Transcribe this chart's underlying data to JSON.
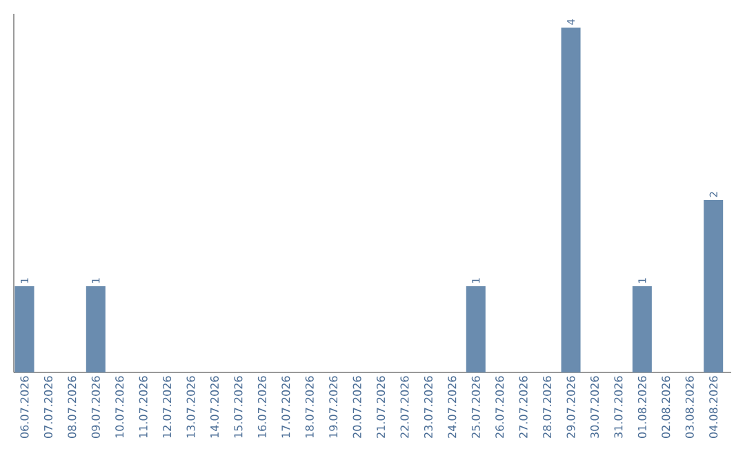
{
  "chart_data": {
    "type": "bar",
    "categories": [
      "06.07.2026",
      "07.07.2026",
      "08.07.2026",
      "09.07.2026",
      "10.07.2026",
      "11.07.2026",
      "12.07.2026",
      "13.07.2026",
      "14.07.2026",
      "15.07.2026",
      "16.07.2026",
      "17.07.2026",
      "18.07.2026",
      "19.07.2026",
      "20.07.2026",
      "21.07.2026",
      "22.07.2026",
      "23.07.2026",
      "24.07.2026",
      "25.07.2026",
      "26.07.2026",
      "27.07.2026",
      "28.07.2026",
      "29.07.2026",
      "30.07.2026",
      "31.07.2026",
      "01.08.2026",
      "02.08.2026",
      "03.08.2026",
      "04.08.2026"
    ],
    "values": [
      1,
      0,
      0,
      1,
      0,
      0,
      0,
      0,
      0,
      0,
      0,
      0,
      0,
      0,
      0,
      0,
      0,
      0,
      0,
      1,
      0,
      0,
      0,
      4,
      0,
      0,
      1,
      0,
      0,
      2
    ],
    "value_labels": [
      "1",
      null,
      null,
      "1",
      null,
      null,
      null,
      null,
      null,
      null,
      null,
      null,
      null,
      null,
      null,
      null,
      null,
      null,
      null,
      "1",
      null,
      null,
      null,
      "4",
      null,
      null,
      "1",
      null,
      null,
      "2"
    ],
    "color": "#6a8caf",
    "ylim": [
      0,
      4.16
    ]
  }
}
